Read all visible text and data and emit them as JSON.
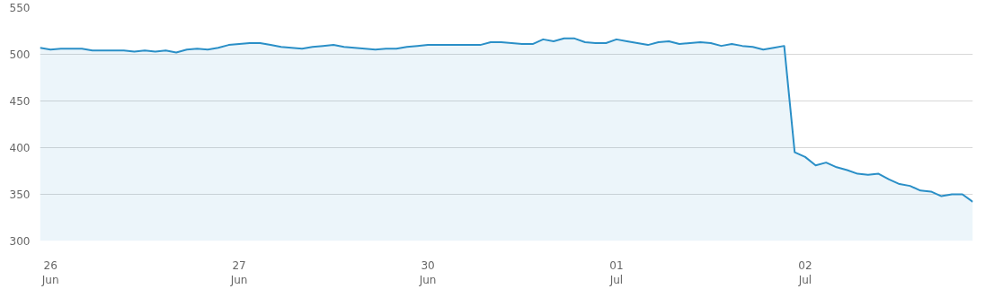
{
  "chart_data": {
    "type": "area",
    "categories": [
      null,
      "26\nJun",
      null,
      null,
      null,
      null,
      null,
      null,
      null,
      null,
      null,
      null,
      null,
      null,
      null,
      null,
      null,
      null,
      null,
      "27\nJun",
      null,
      null,
      null,
      null,
      null,
      null,
      null,
      null,
      null,
      null,
      null,
      null,
      null,
      null,
      null,
      null,
      null,
      "30\nJun",
      null,
      null,
      null,
      null,
      null,
      null,
      null,
      null,
      null,
      null,
      null,
      null,
      null,
      null,
      null,
      null,
      null,
      "01\nJul",
      null,
      null,
      null,
      null,
      null,
      null,
      null,
      null,
      null,
      null,
      null,
      null,
      null,
      null,
      null,
      null,
      null,
      "02\nJul",
      null,
      null,
      null,
      null,
      null,
      null,
      null,
      null,
      null,
      null,
      null,
      null,
      null,
      null,
      null,
      null
    ],
    "series": [
      {
        "color": "#2a8fc7",
        "values": [
          507,
          505,
          506,
          506,
          506,
          504,
          504,
          504,
          504,
          503,
          504,
          503,
          504,
          502,
          505,
          506,
          505,
          507,
          510,
          511,
          512,
          512,
          510,
          508,
          507,
          506,
          508,
          509,
          510,
          508,
          507,
          506,
          505,
          506,
          506,
          508,
          509,
          510,
          510,
          510,
          510,
          510,
          510,
          513,
          513,
          512,
          511,
          511,
          516,
          514,
          517,
          517,
          513,
          512,
          512,
          516,
          514,
          512,
          510,
          513,
          514,
          511,
          512,
          513,
          512,
          509,
          511,
          509,
          508,
          505,
          507,
          509,
          395,
          390,
          381,
          384,
          379,
          376,
          372,
          371,
          372,
          366,
          361,
          359,
          354,
          353,
          348,
          350,
          350,
          342
        ]
      }
    ],
    "ylim": [
      300,
      550
    ],
    "yticks": [
      300,
      350,
      400,
      450,
      500,
      550
    ],
    "grid": "y"
  }
}
